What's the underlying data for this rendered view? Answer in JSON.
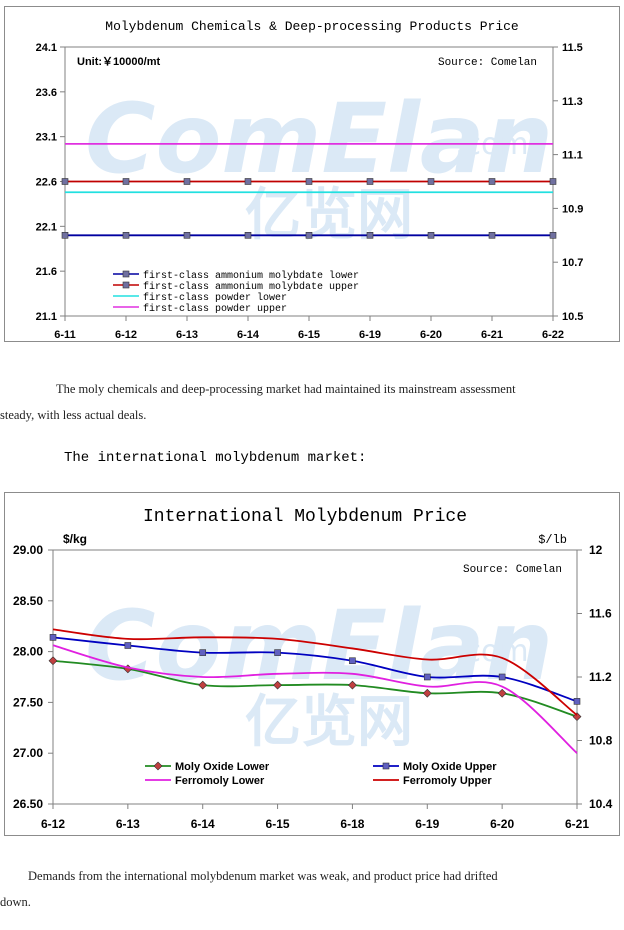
{
  "chart_data": [
    {
      "type": "line",
      "title": "Molybdenum Chemicals & Deep-processing Products Price",
      "unit_note": "Unit:￥10000/mt",
      "source_note": "Source: Comelan",
      "categories": [
        "6-11",
        "6-12",
        "6-13",
        "6-14",
        "6-15",
        "6-19",
        "6-20",
        "6-21",
        "6-22"
      ],
      "ylim": [
        21.1,
        24.1
      ],
      "yticks": [
        "21.1",
        "21.6",
        "22.1",
        "22.6",
        "23.1",
        "23.6",
        "24.1"
      ],
      "y2lim": [
        10.5,
        11.5
      ],
      "y2ticks": [
        "10.5",
        "10.7",
        "10.9",
        "11.1",
        "11.3",
        "11.5"
      ],
      "grid": false,
      "legend_position": "bottom-left",
      "series": [
        {
          "name": "first-class ammonium molybdate lower",
          "axis": "left",
          "color": "#0000a0",
          "marker": "square",
          "values": [
            22.0,
            22.0,
            22.0,
            22.0,
            22.0,
            22.0,
            22.0,
            22.0,
            22.0
          ]
        },
        {
          "name": "first-class ammonium molybdate upper",
          "axis": "left",
          "color": "#c00000",
          "marker": "square",
          "values": [
            22.6,
            22.6,
            22.6,
            22.6,
            22.6,
            22.6,
            22.6,
            22.6,
            22.6
          ]
        },
        {
          "name": "first-class powder lower",
          "axis": "right",
          "color": "#22e0e0",
          "marker": "none",
          "values": [
            10.96,
            10.96,
            10.96,
            10.96,
            10.96,
            10.96,
            10.96,
            10.96,
            10.96
          ]
        },
        {
          "name": "first-class powder upper",
          "axis": "right",
          "color": "#e030e0",
          "marker": "none",
          "values": [
            11.14,
            11.14,
            11.14,
            11.14,
            11.14,
            11.14,
            11.14,
            11.14,
            11.14
          ]
        }
      ]
    },
    {
      "type": "line",
      "title": "International Molybdenum Price",
      "ylabel": "$/kg",
      "y2label": "$/lb",
      "source_note": "Source: Comelan",
      "categories": [
        "6-12",
        "6-13",
        "6-14",
        "6-15",
        "6-18",
        "6-19",
        "6-20",
        "6-21"
      ],
      "ylim": [
        26.5,
        29.0
      ],
      "yticks": [
        "26.50",
        "27.00",
        "27.50",
        "28.00",
        "28.50",
        "29.00"
      ],
      "y2lim": [
        10.4,
        12.0
      ],
      "y2ticks": [
        "10.4",
        "10.8",
        "11.2",
        "11.6",
        "12"
      ],
      "grid": false,
      "legend_position": "bottom",
      "series": [
        {
          "name": "Moly Oxide Lower",
          "axis": "left",
          "color": "#228b22",
          "marker": "diamond",
          "markerColor": "#c04040",
          "values": [
            27.91,
            27.83,
            27.67,
            27.67,
            27.67,
            27.59,
            27.59,
            27.36
          ]
        },
        {
          "name": "Moly Oxide Upper",
          "axis": "left",
          "color": "#0000c0",
          "marker": "square",
          "markerColor": "#6060c0",
          "values": [
            28.14,
            28.06,
            27.99,
            27.99,
            27.91,
            27.75,
            27.75,
            27.51
          ]
        },
        {
          "name": "Ferromoly Lower",
          "axis": "right",
          "color": "#e020e0",
          "marker": "none",
          "values": [
            11.4,
            11.26,
            11.2,
            11.22,
            11.22,
            11.14,
            11.14,
            10.72
          ]
        },
        {
          "name": "Ferromoly Upper",
          "axis": "right",
          "color": "#cc0000",
          "marker": "none",
          "values": [
            11.5,
            11.44,
            11.45,
            11.44,
            11.38,
            11.31,
            11.32,
            10.96
          ]
        }
      ]
    }
  ],
  "watermark": {
    "latin": "ComElan",
    "dotcom": ".com",
    "chinese": "亿览网"
  },
  "text": {
    "para1_lead": "The moly chemicals and deep-processing market had maintained its mainstream assessment",
    "para1_rest": "steady, with less actual deals.",
    "heading_intl": "The international molybdenum market:",
    "para2_lead": "Demands from the international molybdenum market was weak, and product price had drifted",
    "para2_rest": "down."
  },
  "colors": {
    "border": "#8c8c8c",
    "watermark": "#dbe9f6"
  }
}
